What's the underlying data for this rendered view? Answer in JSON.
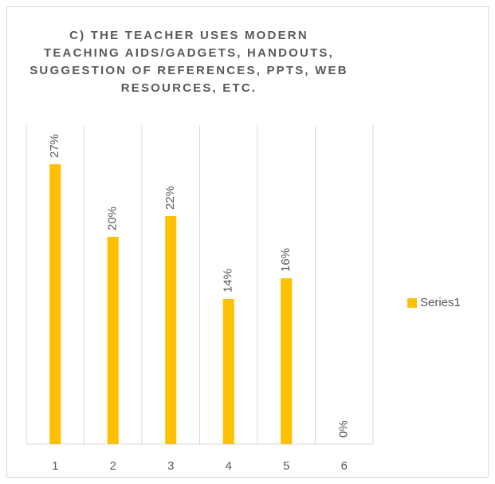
{
  "chart_data": {
    "type": "bar",
    "title": "C) THE TEACHER USES MODERN TEACHING AIDS/GADGETS, HANDOUTS, SUGGESTION OF REFERENCES, PPTS, WEB RESOURCES, ETC.",
    "categories": [
      "1",
      "2",
      "3",
      "4",
      "5",
      "6"
    ],
    "series": [
      {
        "name": "Series1",
        "color": "#ffc000",
        "values": [
          27,
          20,
          22,
          14,
          16,
          0
        ],
        "value_labels": [
          "27%",
          "20%",
          "22%",
          "14%",
          "16%",
          "0%"
        ]
      }
    ],
    "ylim": [
      0,
      30
    ],
    "legend": "right"
  }
}
